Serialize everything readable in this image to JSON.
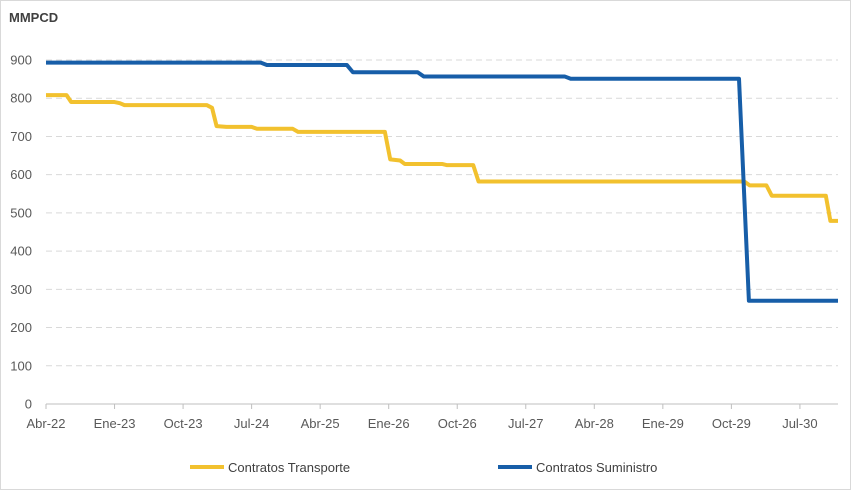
{
  "chart_data": {
    "type": "line",
    "title": "",
    "ylabel": "MMPCD",
    "xlabel": "",
    "ylim": [
      0,
      900
    ],
    "yticks": [
      0,
      100,
      200,
      300,
      400,
      500,
      600,
      700,
      800,
      900
    ],
    "x_start": "Abr-22",
    "x_months": 104,
    "xticks": [
      {
        "label": "Abr-22",
        "month": 0
      },
      {
        "label": "Ene-23",
        "month": 9
      },
      {
        "label": "Oct-23",
        "month": 18
      },
      {
        "label": "Jul-24",
        "month": 27
      },
      {
        "label": "Abr-25",
        "month": 36
      },
      {
        "label": "Ene-26",
        "month": 45
      },
      {
        "label": "Oct-26",
        "month": 54
      },
      {
        "label": "Jul-27",
        "month": 63
      },
      {
        "label": "Abr-28",
        "month": 72
      },
      {
        "label": "Ene-29",
        "month": 81
      },
      {
        "label": "Oct-29",
        "month": 90
      },
      {
        "label": "Jul-30",
        "month": 99
      }
    ],
    "grid": true,
    "legend_position": "bottom",
    "series": [
      {
        "name": "Contratos Transporte",
        "color": "#f2c12e",
        "points": [
          [
            0,
            808
          ],
          [
            2.7,
            808
          ],
          [
            3.3,
            790
          ],
          [
            9,
            790
          ],
          [
            9.7,
            787
          ],
          [
            10.3,
            782
          ],
          [
            21.1,
            782
          ],
          [
            21.8,
            775
          ],
          [
            22.4,
            727
          ],
          [
            23.7,
            725
          ],
          [
            27,
            725
          ],
          [
            27.7,
            720
          ],
          [
            32.4,
            720
          ],
          [
            33.1,
            712
          ],
          [
            44.5,
            712
          ],
          [
            45.2,
            640
          ],
          [
            46.5,
            637
          ],
          [
            47.1,
            628
          ],
          [
            52,
            628
          ],
          [
            52.6,
            625
          ],
          [
            56.1,
            625
          ],
          [
            56.8,
            582
          ],
          [
            91.7,
            582
          ],
          [
            92.4,
            572
          ],
          [
            94.6,
            572
          ],
          [
            95.3,
            545
          ],
          [
            102.4,
            545
          ],
          [
            103,
            479
          ],
          [
            104,
            479
          ]
        ]
      },
      {
        "name": "Contratos Suministro",
        "color": "#175ea8",
        "points": [
          [
            0,
            893
          ],
          [
            28.2,
            893
          ],
          [
            29,
            887
          ],
          [
            39.5,
            887
          ],
          [
            40.3,
            868
          ],
          [
            48.8,
            868
          ],
          [
            49.6,
            857
          ],
          [
            68.1,
            857
          ],
          [
            68.9,
            851
          ],
          [
            91,
            851
          ],
          [
            92.3,
            270
          ],
          [
            104,
            270
          ]
        ]
      }
    ]
  }
}
